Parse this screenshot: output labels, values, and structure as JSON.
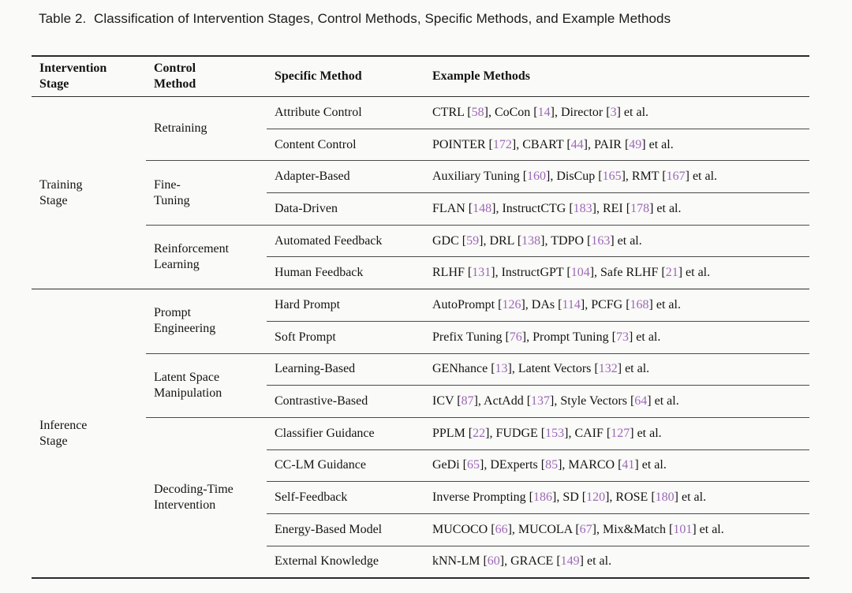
{
  "title": "Table 2.  Classification of Intervention Stages, Control Methods, Specific Methods, and Example Methods",
  "colors": {
    "citation": "#9c68b8",
    "rule_heavy": "#2b2b2b",
    "rule_light": "#4a4a4a",
    "text": "#141414",
    "background": "#fafaf8"
  },
  "table": {
    "headers": {
      "stage": "Intervention\nStage",
      "control": "Control\nMethod",
      "specific": "Specific Method",
      "example": "Example Methods"
    },
    "stages": {
      "training": "Training\nStage",
      "inference": "Inference\nStage"
    },
    "controls": {
      "retraining": "Retraining",
      "fine_tuning": "Fine-\nTuning",
      "reinforcement_learning": "Reinforcement\nLearning",
      "prompt_engineering": "Prompt\nEngineering",
      "latent_space": "Latent Space\nManipulation",
      "decoding_time": "Decoding-Time\nIntervention"
    },
    "rows": [
      {
        "specific": "Attribute Control",
        "example": [
          {
            "t": "CTRL ["
          },
          {
            "t": "58",
            "cite": true
          },
          {
            "t": "], CoCon ["
          },
          {
            "t": "14",
            "cite": true
          },
          {
            "t": "], Director ["
          },
          {
            "t": "3",
            "cite": true
          },
          {
            "t": "] et al."
          }
        ]
      },
      {
        "specific": "Content Control",
        "example": [
          {
            "t": "POINTER ["
          },
          {
            "t": "172",
            "cite": true
          },
          {
            "t": "], CBART ["
          },
          {
            "t": "44",
            "cite": true
          },
          {
            "t": "], PAIR ["
          },
          {
            "t": "49",
            "cite": true
          },
          {
            "t": "] et al."
          }
        ]
      },
      {
        "specific": "Adapter-Based",
        "example": [
          {
            "t": "Auxiliary Tuning ["
          },
          {
            "t": "160",
            "cite": true
          },
          {
            "t": "], DisCup ["
          },
          {
            "t": "165",
            "cite": true
          },
          {
            "t": "], RMT ["
          },
          {
            "t": "167",
            "cite": true
          },
          {
            "t": "] et al."
          }
        ]
      },
      {
        "specific": "Data-Driven",
        "example": [
          {
            "t": "FLAN ["
          },
          {
            "t": "148",
            "cite": true
          },
          {
            "t": "], InstructCTG ["
          },
          {
            "t": "183",
            "cite": true
          },
          {
            "t": "], REI ["
          },
          {
            "t": "178",
            "cite": true
          },
          {
            "t": "] et al."
          }
        ]
      },
      {
        "specific": "Automated Feedback",
        "example": [
          {
            "t": "GDC ["
          },
          {
            "t": "59",
            "cite": true
          },
          {
            "t": "], DRL ["
          },
          {
            "t": "138",
            "cite": true
          },
          {
            "t": "], TDPO ["
          },
          {
            "t": "163",
            "cite": true
          },
          {
            "t": "] et al."
          }
        ]
      },
      {
        "specific": "Human Feedback",
        "example": [
          {
            "t": "RLHF ["
          },
          {
            "t": "131",
            "cite": true
          },
          {
            "t": "], InstructGPT ["
          },
          {
            "t": "104",
            "cite": true
          },
          {
            "t": "], Safe RLHF ["
          },
          {
            "t": "21",
            "cite": true
          },
          {
            "t": "] et al."
          }
        ]
      },
      {
        "specific": "Hard Prompt",
        "example": [
          {
            "t": "AutoPrompt ["
          },
          {
            "t": "126",
            "cite": true
          },
          {
            "t": "], DAs ["
          },
          {
            "t": "114",
            "cite": true
          },
          {
            "t": "], PCFG ["
          },
          {
            "t": "168",
            "cite": true
          },
          {
            "t": "] et al."
          }
        ]
      },
      {
        "specific": "Soft Prompt",
        "example": [
          {
            "t": "Prefix Tuning ["
          },
          {
            "t": "76",
            "cite": true
          },
          {
            "t": "], Prompt Tuning ["
          },
          {
            "t": "73",
            "cite": true
          },
          {
            "t": "] et al."
          }
        ]
      },
      {
        "specific": "Learning-Based",
        "example": [
          {
            "t": "GENhance ["
          },
          {
            "t": "13",
            "cite": true
          },
          {
            "t": "], Latent Vectors ["
          },
          {
            "t": "132",
            "cite": true
          },
          {
            "t": "] et al."
          }
        ]
      },
      {
        "specific": "Contrastive-Based",
        "example": [
          {
            "t": "ICV ["
          },
          {
            "t": "87",
            "cite": true
          },
          {
            "t": "], ActAdd ["
          },
          {
            "t": "137",
            "cite": true
          },
          {
            "t": "], Style Vectors ["
          },
          {
            "t": "64",
            "cite": true
          },
          {
            "t": "] et al."
          }
        ]
      },
      {
        "specific": "Classifier Guidance",
        "example": [
          {
            "t": "PPLM ["
          },
          {
            "t": "22",
            "cite": true
          },
          {
            "t": "], FUDGE ["
          },
          {
            "t": "153",
            "cite": true
          },
          {
            "t": "], CAIF ["
          },
          {
            "t": "127",
            "cite": true
          },
          {
            "t": "] et al."
          }
        ]
      },
      {
        "specific": "CC-LM Guidance",
        "example": [
          {
            "t": "GeDi ["
          },
          {
            "t": "65",
            "cite": true
          },
          {
            "t": "], DExperts ["
          },
          {
            "t": "85",
            "cite": true
          },
          {
            "t": "], MARCO ["
          },
          {
            "t": "41",
            "cite": true
          },
          {
            "t": "] et al."
          }
        ]
      },
      {
        "specific": "Self-Feedback",
        "example": [
          {
            "t": "Inverse Prompting ["
          },
          {
            "t": "186",
            "cite": true
          },
          {
            "t": "], SD ["
          },
          {
            "t": "120",
            "cite": true
          },
          {
            "t": "], ROSE ["
          },
          {
            "t": "180",
            "cite": true
          },
          {
            "t": "] et al."
          }
        ]
      },
      {
        "specific": "Energy-Based Model",
        "example": [
          {
            "t": "MUCOCO ["
          },
          {
            "t": "66",
            "cite": true
          },
          {
            "t": "], MUCOLA ["
          },
          {
            "t": "67",
            "cite": true
          },
          {
            "t": "], Mix&Match ["
          },
          {
            "t": "101",
            "cite": true
          },
          {
            "t": "] et al."
          }
        ]
      },
      {
        "specific": "External Knowledge",
        "example": [
          {
            "t": "kNN-LM ["
          },
          {
            "t": "60",
            "cite": true
          },
          {
            "t": "], GRACE ["
          },
          {
            "t": "149",
            "cite": true
          },
          {
            "t": "] et al."
          }
        ]
      }
    ]
  }
}
